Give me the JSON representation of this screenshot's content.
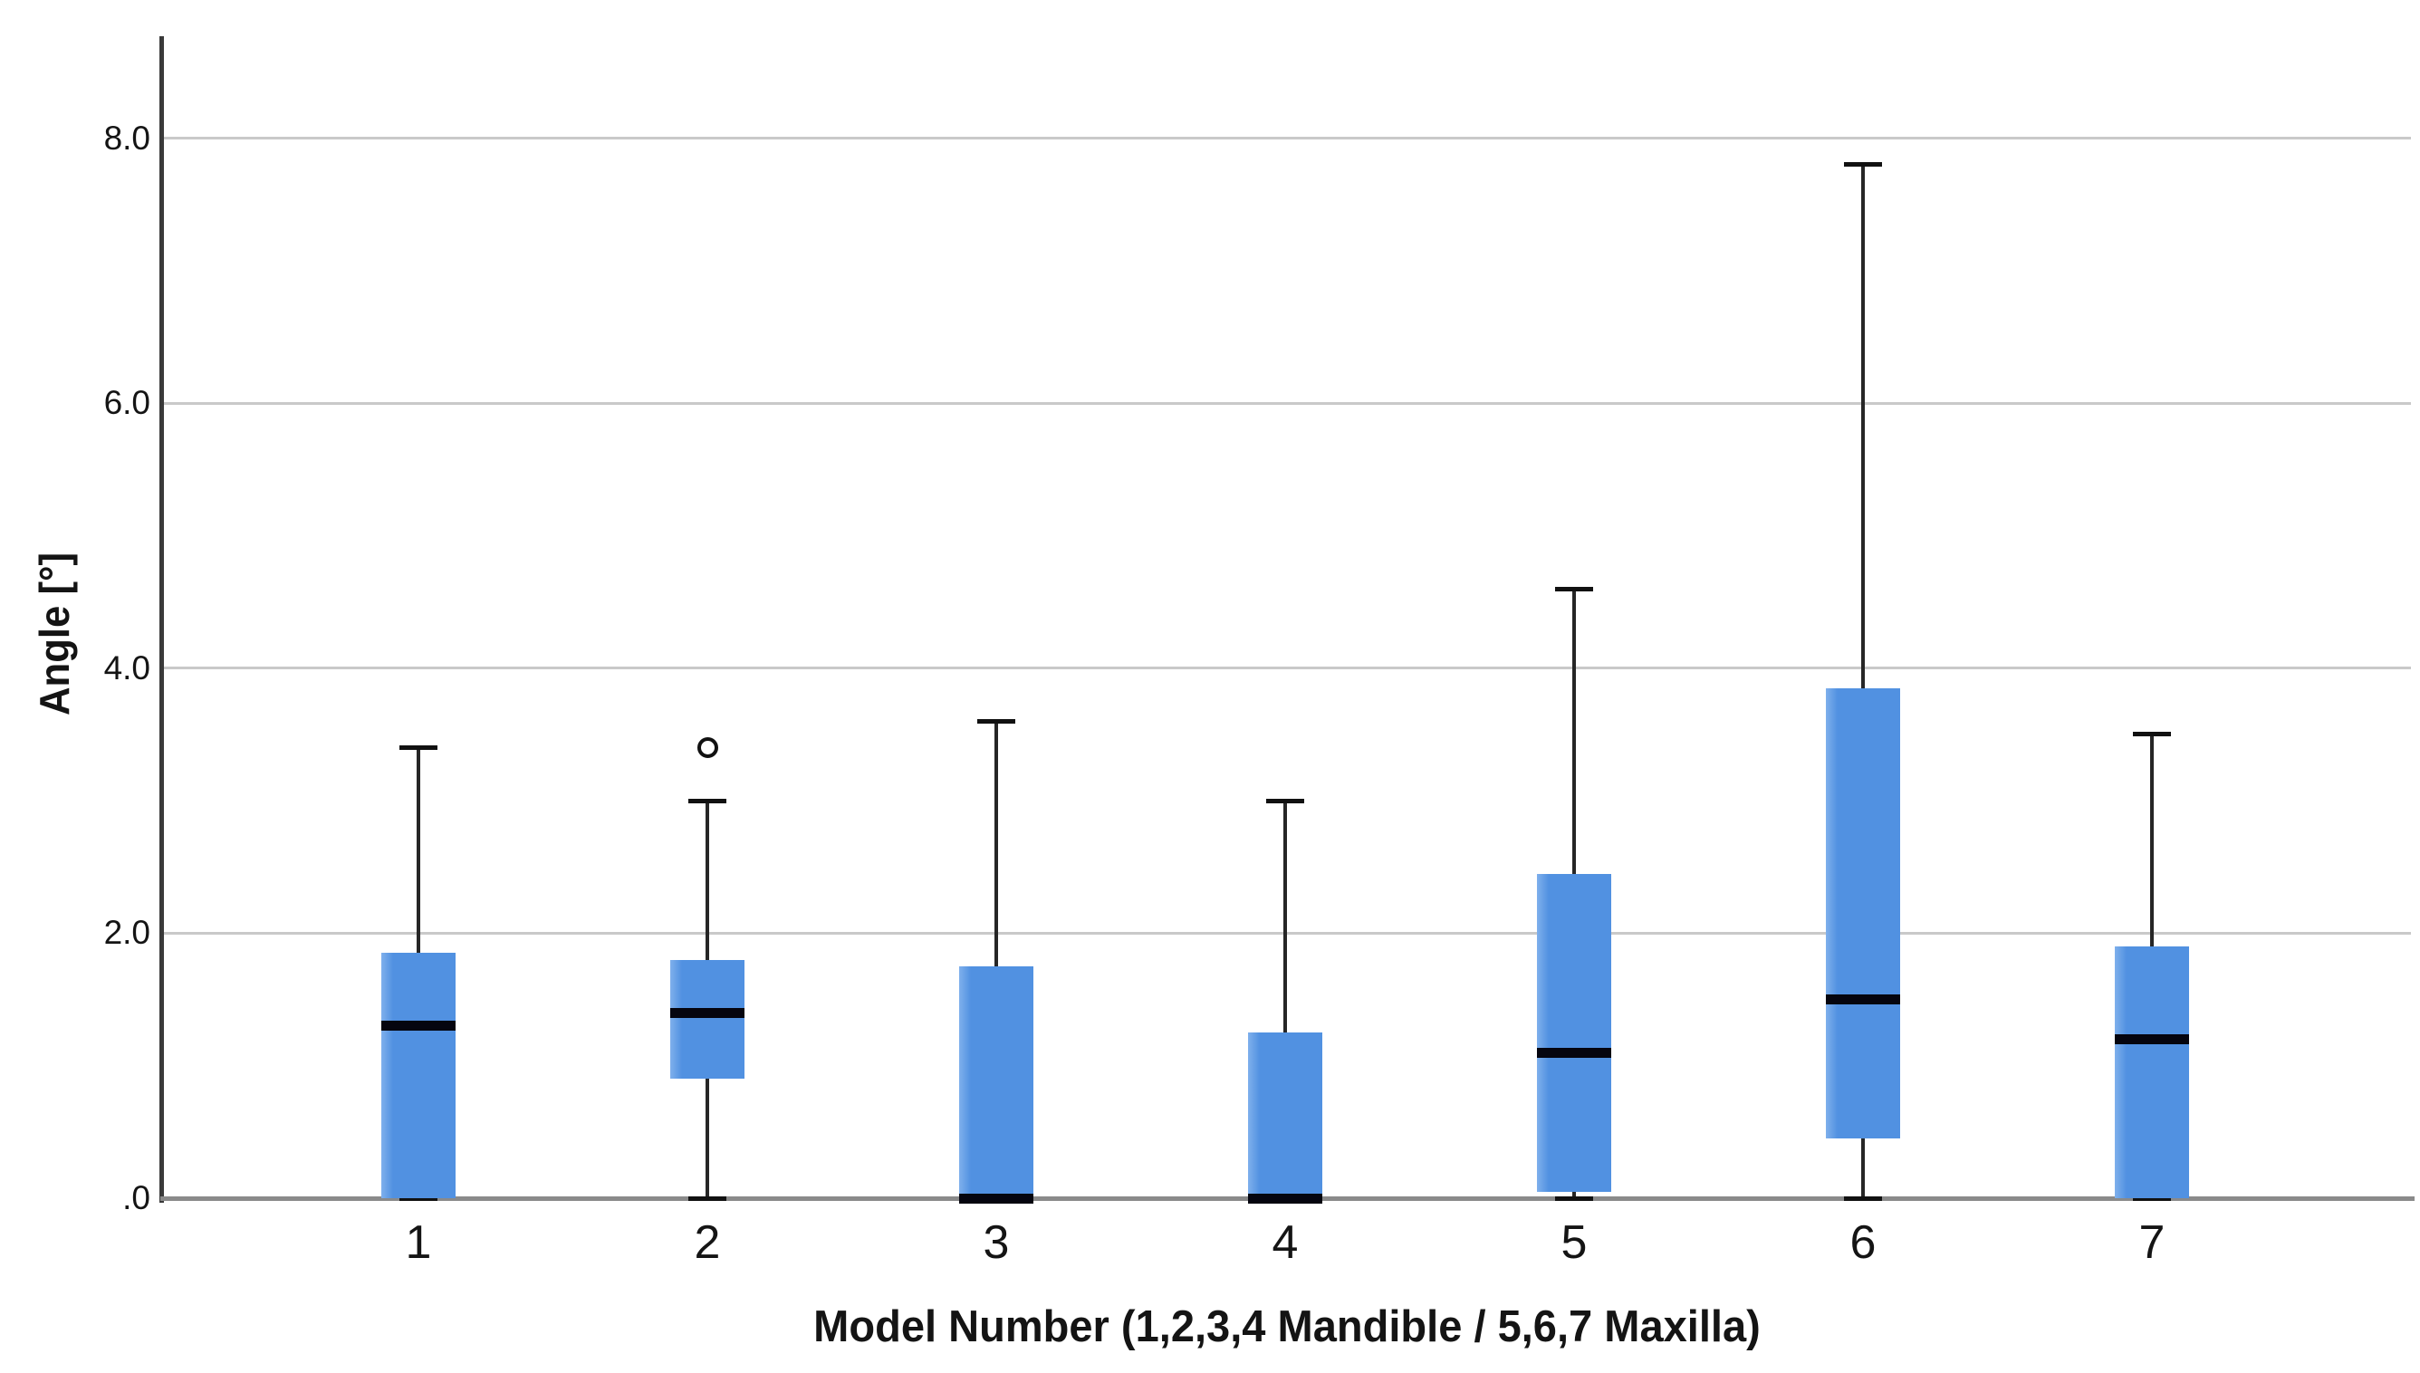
{
  "chart_data": {
    "type": "boxplot",
    "title": "",
    "xlabel": "Model Number (1,2,3,4 Mandible / 5,6,7 Maxilla)",
    "ylabel": "Angle [°]",
    "ylim": [
      0,
      8.8
    ],
    "grid": "horizontal-light",
    "legend": "none",
    "yticks": [
      {
        "value": 0.0,
        "label": ".0"
      },
      {
        "value": 2.0,
        "label": "2.0"
      },
      {
        "value": 4.0,
        "label": "4.0"
      },
      {
        "value": 6.0,
        "label": "6.0"
      },
      {
        "value": 8.0,
        "label": "8.0"
      }
    ],
    "categories": [
      "1",
      "2",
      "3",
      "4",
      "5",
      "6",
      "7"
    ],
    "series": [
      {
        "category": "1",
        "whisker_low": 0.0,
        "q1": 0.0,
        "median": 1.3,
        "q3": 1.85,
        "whisker_high": 3.4,
        "outliers": [],
        "low_cap": true
      },
      {
        "category": "2",
        "whisker_low": 0.0,
        "q1": 0.9,
        "median": 1.4,
        "q3": 1.8,
        "whisker_high": 3.0,
        "outliers": [
          3.4
        ],
        "low_cap": true
      },
      {
        "category": "3",
        "whisker_low": 0.0,
        "q1": 0.0,
        "median": 0.0,
        "q3": 1.75,
        "whisker_high": 3.6,
        "outliers": [],
        "low_cap": false
      },
      {
        "category": "4",
        "whisker_low": 0.0,
        "q1": 0.0,
        "median": 0.0,
        "q3": 1.25,
        "whisker_high": 3.0,
        "outliers": [],
        "low_cap": false
      },
      {
        "category": "5",
        "whisker_low": 0.0,
        "q1": 0.05,
        "median": 1.1,
        "q3": 2.45,
        "whisker_high": 4.6,
        "outliers": [],
        "low_cap": true
      },
      {
        "category": "6",
        "whisker_low": 0.0,
        "q1": 0.45,
        "median": 1.5,
        "q3": 3.85,
        "whisker_high": 7.8,
        "outliers": [],
        "low_cap": true
      },
      {
        "category": "7",
        "whisker_low": 0.0,
        "q1": 0.0,
        "median": 1.2,
        "q3": 1.9,
        "whisker_high": 3.5,
        "outliers": [],
        "low_cap": true
      }
    ],
    "colors": {
      "box_fill": "#5191E1",
      "box_highlight": "#7FB0EC",
      "median": "#05050F",
      "whisker": "#262626",
      "cap": "#111111",
      "gridline": "#C9C9C9",
      "x_axis": "#8A8A8A",
      "y_axis": "#3A3A3A",
      "text": "#141414",
      "background": "#FFFFFF"
    }
  }
}
